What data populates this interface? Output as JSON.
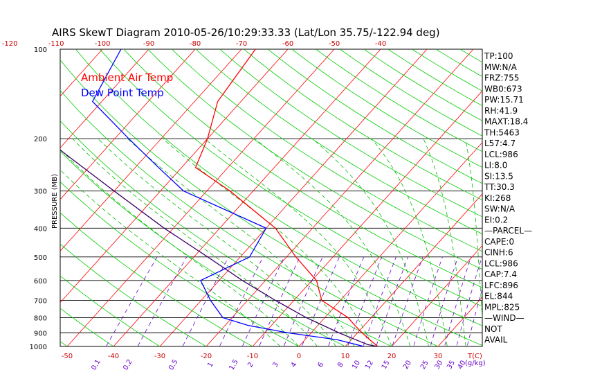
{
  "chart_data": {
    "type": "line",
    "title": "AIRS SkewT Diagram 2010-05-26/10:29:33.33 (Lat/Lon 35.75/-122.94 deg)",
    "ylabel": "PRESSURE (MB)",
    "pressure_range": [
      1000,
      100
    ],
    "pressure_ticks": [
      100,
      200,
      300,
      400,
      500,
      600,
      700,
      800,
      900,
      1000
    ],
    "top_temp_ticks": [
      -120,
      -110,
      -100,
      -90,
      -80,
      -70,
      -60,
      -50,
      -40
    ],
    "bottom_temp_ticks": [
      -50,
      -40,
      -30,
      -20,
      -10,
      0,
      10,
      20,
      30
    ],
    "bottom_temp_unit": "T(C)",
    "mixing_ratio_ticks": [
      "0.1",
      "0.2",
      "0.5",
      "1",
      "1.5",
      "2",
      "3",
      "4",
      "6",
      "8",
      "10",
      "12",
      "15",
      "20",
      "25",
      "30",
      "35",
      "40"
    ],
    "mixing_ratio_unit": "(g/kg)",
    "legend": [
      {
        "name": "Ambient Air Temp",
        "color": "#ff0000"
      },
      {
        "name": "Dew Point Temp",
        "color": "#0000ff"
      }
    ],
    "series": [
      {
        "name": "Ambient Air Temp",
        "color": "#ff0000",
        "points": [
          [
            1000,
            17
          ],
          [
            950,
            14
          ],
          [
            900,
            11
          ],
          [
            850,
            8
          ],
          [
            800,
            5
          ],
          [
            700,
            -4
          ],
          [
            600,
            -9
          ],
          [
            500,
            -18
          ],
          [
            400,
            -28
          ],
          [
            300,
            -45
          ],
          [
            250,
            -57
          ],
          [
            200,
            -60
          ],
          [
            150,
            -65
          ],
          [
            100,
            -67
          ]
        ]
      },
      {
        "name": "Dew Point Temp",
        "color": "#0000ff",
        "points": [
          [
            1000,
            14
          ],
          [
            950,
            7
          ],
          [
            900,
            -5
          ],
          [
            850,
            -15
          ],
          [
            800,
            -22
          ],
          [
            700,
            -28
          ],
          [
            600,
            -34
          ],
          [
            500,
            -28
          ],
          [
            400,
            -30
          ],
          [
            300,
            -55
          ],
          [
            250,
            -65
          ],
          [
            200,
            -77
          ],
          [
            150,
            -92
          ],
          [
            100,
            -96
          ]
        ]
      },
      {
        "name": "Parcel",
        "color": "#3a0066",
        "points": [
          [
            1000,
            17
          ],
          [
            986,
            14.5
          ],
          [
            900,
            6
          ],
          [
            800,
            -4
          ],
          [
            700,
            -14
          ],
          [
            600,
            -25
          ],
          [
            500,
            -37
          ],
          [
            400,
            -52
          ],
          [
            300,
            -70
          ],
          [
            200,
            -95
          ],
          [
            150,
            -112
          ],
          [
            100,
            -128
          ]
        ]
      }
    ]
  },
  "indices": [
    "TP:100",
    "MW:N/A",
    "FRZ:755",
    "WB0:673",
    "PW:15.71",
    "RH:41.9",
    "MAXT:18.4",
    "TH:5463",
    "L57:4.7",
    "LCL:986",
    "LI:8.0",
    "SI:13.5",
    "TT:30.3",
    "KI:268",
    "SW:N/A",
    "EI:0.2",
    "—PARCEL—",
    "CAPE:0",
    "CINH:6",
    "LCL:986",
    "CAP:7.4",
    "LFC:896",
    "EL:844",
    "MPL:825",
    "—WIND—",
    "NOT",
    "AVAIL"
  ],
  "colors": {
    "isotherm": "#ff0000",
    "dry_adiabat": "#00cc00",
    "moist_adiabat": "#00bb00",
    "mixing_ratio": "#6600cc",
    "isobar": "#000000"
  }
}
